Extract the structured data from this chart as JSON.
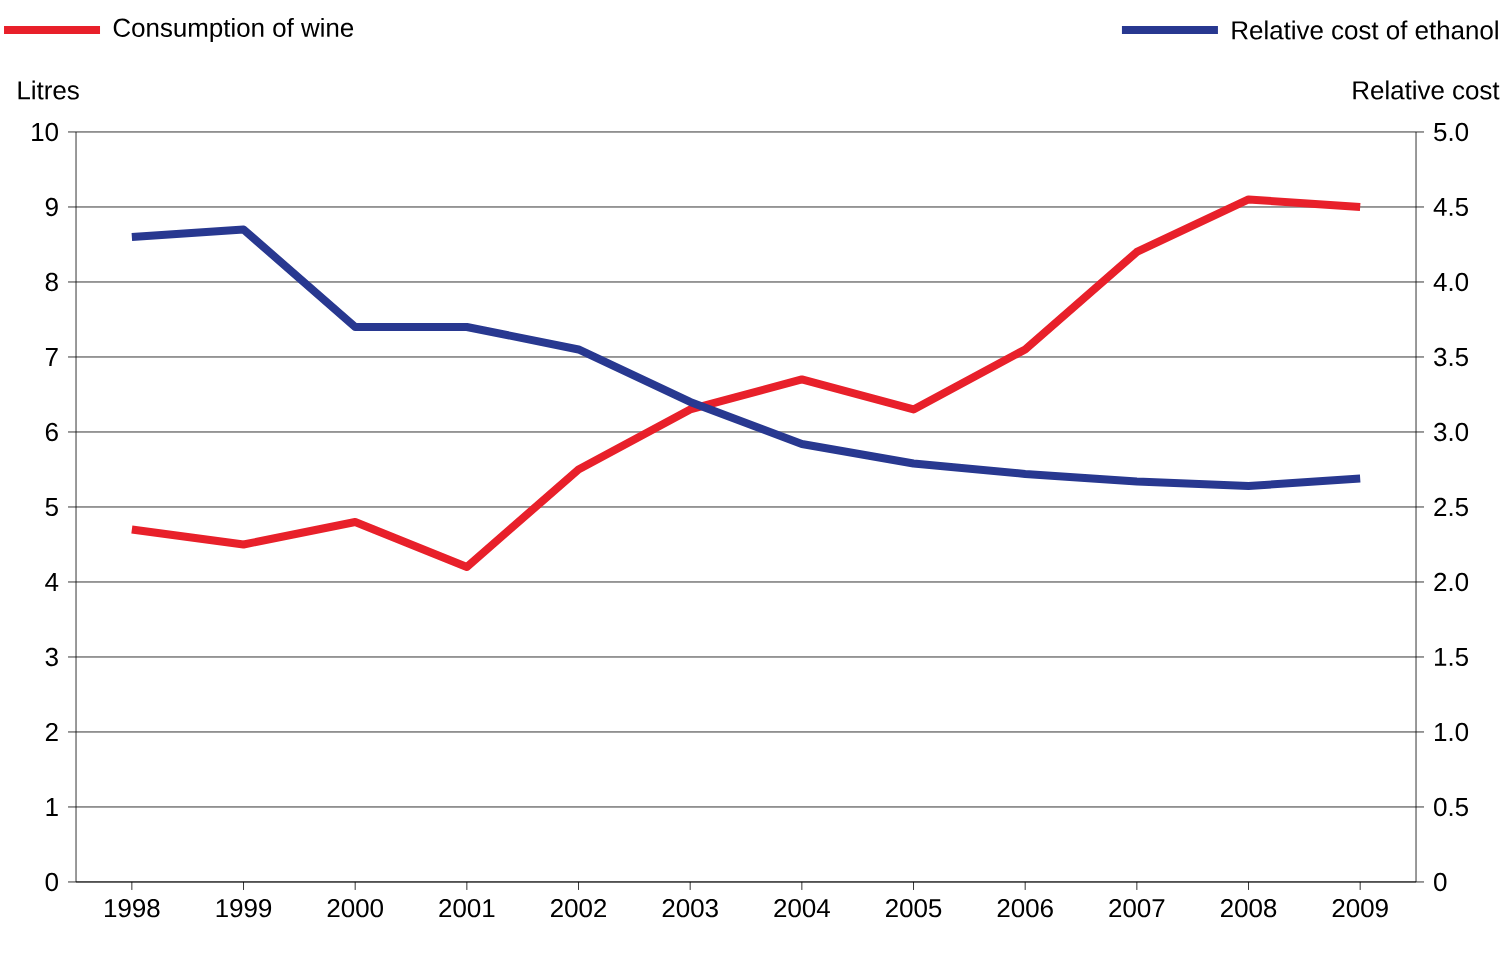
{
  "chart_data": {
    "type": "line",
    "categories": [
      "1998",
      "1999",
      "2000",
      "2001",
      "2002",
      "2003",
      "2004",
      "2005",
      "2006",
      "2007",
      "2008",
      "2009"
    ],
    "ylabel": "Litres",
    "y2label": "Relative cost",
    "ylim": [
      0,
      10
    ],
    "yticks": [
      0,
      1,
      2,
      3,
      4,
      5,
      6,
      7,
      8,
      9,
      10
    ],
    "y2lim": [
      0,
      5
    ],
    "y2ticks": [
      0,
      0.5,
      {
        "value": 1,
        "label": "1.0"
      },
      1.5,
      {
        "value": 2,
        "label": "2.0"
      },
      2.5,
      {
        "value": 3,
        "label": "3.0"
      },
      3.5,
      {
        "value": 4,
        "label": "4.0"
      },
      4.5,
      {
        "value": 5,
        "label": "5.0"
      }
    ],
    "grid": "y",
    "legend": "top",
    "marker": "none",
    "line_style": "solid",
    "series": [
      {
        "name": "Consumption of wine",
        "color": "#e8202a",
        "values": [
          4.7,
          4.5,
          4.8,
          4.2,
          5.5,
          6.3,
          6.7,
          6.3,
          7.1,
          8.4,
          9.1,
          9.0
        ]
      },
      {
        "name": "Relative cost of ethanol",
        "color": "#283890",
        "axis": "y2",
        "values": [
          4.3,
          4.35,
          3.7,
          3.7,
          3.55,
          3.2,
          2.92,
          2.79,
          2.72,
          2.67,
          2.64,
          2.69
        ]
      }
    ]
  }
}
